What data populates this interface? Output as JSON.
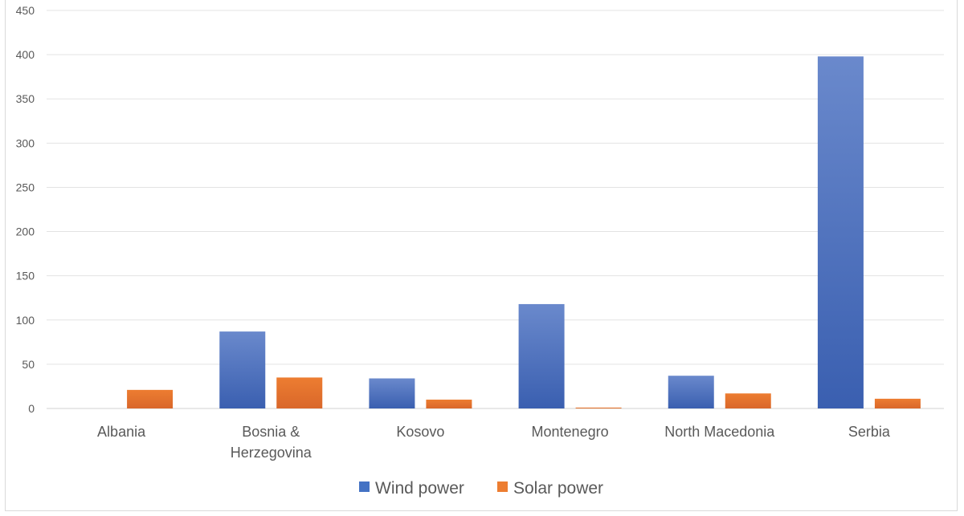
{
  "chart_data": {
    "type": "bar",
    "categories": [
      "Albania",
      "Bosnia & Herzegovina",
      "Kosovo",
      "Montenegro",
      "North Macedonia",
      "Serbia"
    ],
    "category_lines": [
      [
        "Albania"
      ],
      [
        "Bosnia &",
        "Herzegovina"
      ],
      [
        "Kosovo"
      ],
      [
        "Montenegro"
      ],
      [
        "North Macedonia"
      ],
      [
        "Serbia"
      ]
    ],
    "series": [
      {
        "name": "Wind power",
        "color": "#4472c4",
        "values": [
          0,
          87,
          34,
          118,
          37,
          398
        ]
      },
      {
        "name": "Solar power",
        "color": "#ed7d31",
        "values": [
          21,
          35,
          10,
          1,
          17,
          11
        ]
      }
    ],
    "ylim": [
      0,
      450
    ],
    "yticks": [
      "0",
      "50",
      "100",
      "150",
      "200",
      "250",
      "300",
      "350",
      "400",
      "450"
    ],
    "title": "",
    "xlabel": "",
    "ylabel": "",
    "grid": true,
    "legend_position": "bottom"
  }
}
